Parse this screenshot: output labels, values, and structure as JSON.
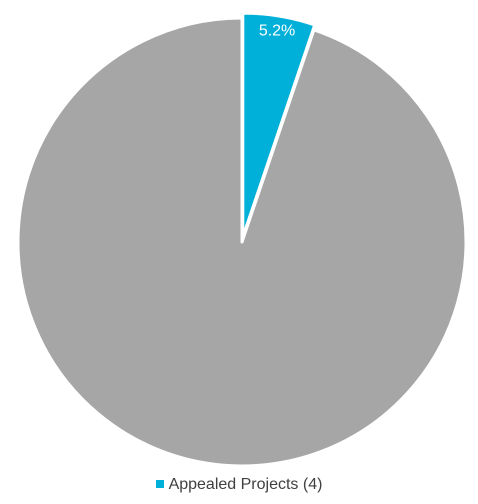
{
  "chart_data": {
    "type": "pie",
    "slices": [
      {
        "label": "Appealed Projects (4)",
        "value": 5.2,
        "data_label": "5.2%",
        "color": "#00b0d8",
        "exploded": true
      },
      {
        "label": "",
        "value": 94.8,
        "data_label": "",
        "color": "#a6a6a6",
        "exploded": false
      }
    ],
    "start_angle_deg": 0,
    "direction": "clockwise",
    "legend": {
      "placement": "bottom",
      "entries": [
        {
          "label": "Appealed Projects (4)",
          "color": "#00b0d8"
        }
      ]
    },
    "data_label_color": "#ffffff",
    "slice_border_color": "#ffffff"
  }
}
